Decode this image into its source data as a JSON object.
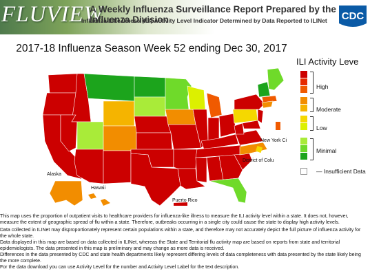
{
  "header": {
    "logo_text": "FLUVIEW",
    "title": "A Weekly Influenza Surveillance Report Prepared by the Influenza Division",
    "subtitle": "Influenza-Like Illness (ILI) Activity Level Indicator Determined by Data Reported to ILINet",
    "agency_logo_text": "CDC"
  },
  "page_title": "2017-18 Influenza Season Week 52 ending Dec 30, 2017",
  "legend": {
    "title": "ILI Activity Leve",
    "levels": [
      {
        "level": 10,
        "color": "#cc0000"
      },
      {
        "level": 9,
        "color": "#e62a00"
      },
      {
        "level": 8,
        "color": "#f05a00"
      },
      {
        "level": 7,
        "color": "#f28d00"
      },
      {
        "level": 6,
        "color": "#f5b400"
      },
      {
        "level": 5,
        "color": "#f5d800"
      },
      {
        "level": 4,
        "color": "#dcf000"
      },
      {
        "level": 3,
        "color": "#a9eb39"
      },
      {
        "level": 2,
        "color": "#6fda2a"
      },
      {
        "level": 1,
        "color": "#1ca41c"
      },
      {
        "level": 0,
        "color": "#ffffff"
      }
    ],
    "categories": [
      "High",
      "Moderate",
      "Low",
      "Minimal"
    ],
    "insufficient": "Insufficient Data"
  },
  "map_labels": {
    "alaska": "Alaska",
    "hawaii": "Hawaii",
    "new_york_city": "New York Ci",
    "puerto_rico": "Puerto Rico",
    "district_of_columbia": "District of Colu"
  },
  "notes": [
    "This map uses the proportion of outpatient visits to healthcare providers for influenza-like illness to measure the ILI activity level within a state. It does not, however, measure the extent of geographic spread of flu within a state. Therefore, outbreaks occurring in a single city could cause the state to display high activity levels.",
    "Data collected in ILINet may disproportionately represent certain populations within a state, and therefore may not accurately depict the full picture of influenza activity for the whole state.",
    "Data displayed in this map are based on data collected in ILINet, whereas the State and Territorial flu activity map are based on reports from state and territorial epidemiologists. The data presented in this map is preliminary and may change as more data is received.",
    "Differences in the data presented by CDC and state health departments likely represent differing levels of data completeness with data presented by the state likely being the more complete.",
    "For the data download you can use Activity Level for the number and Activity Level Label for the text description."
  ]
}
